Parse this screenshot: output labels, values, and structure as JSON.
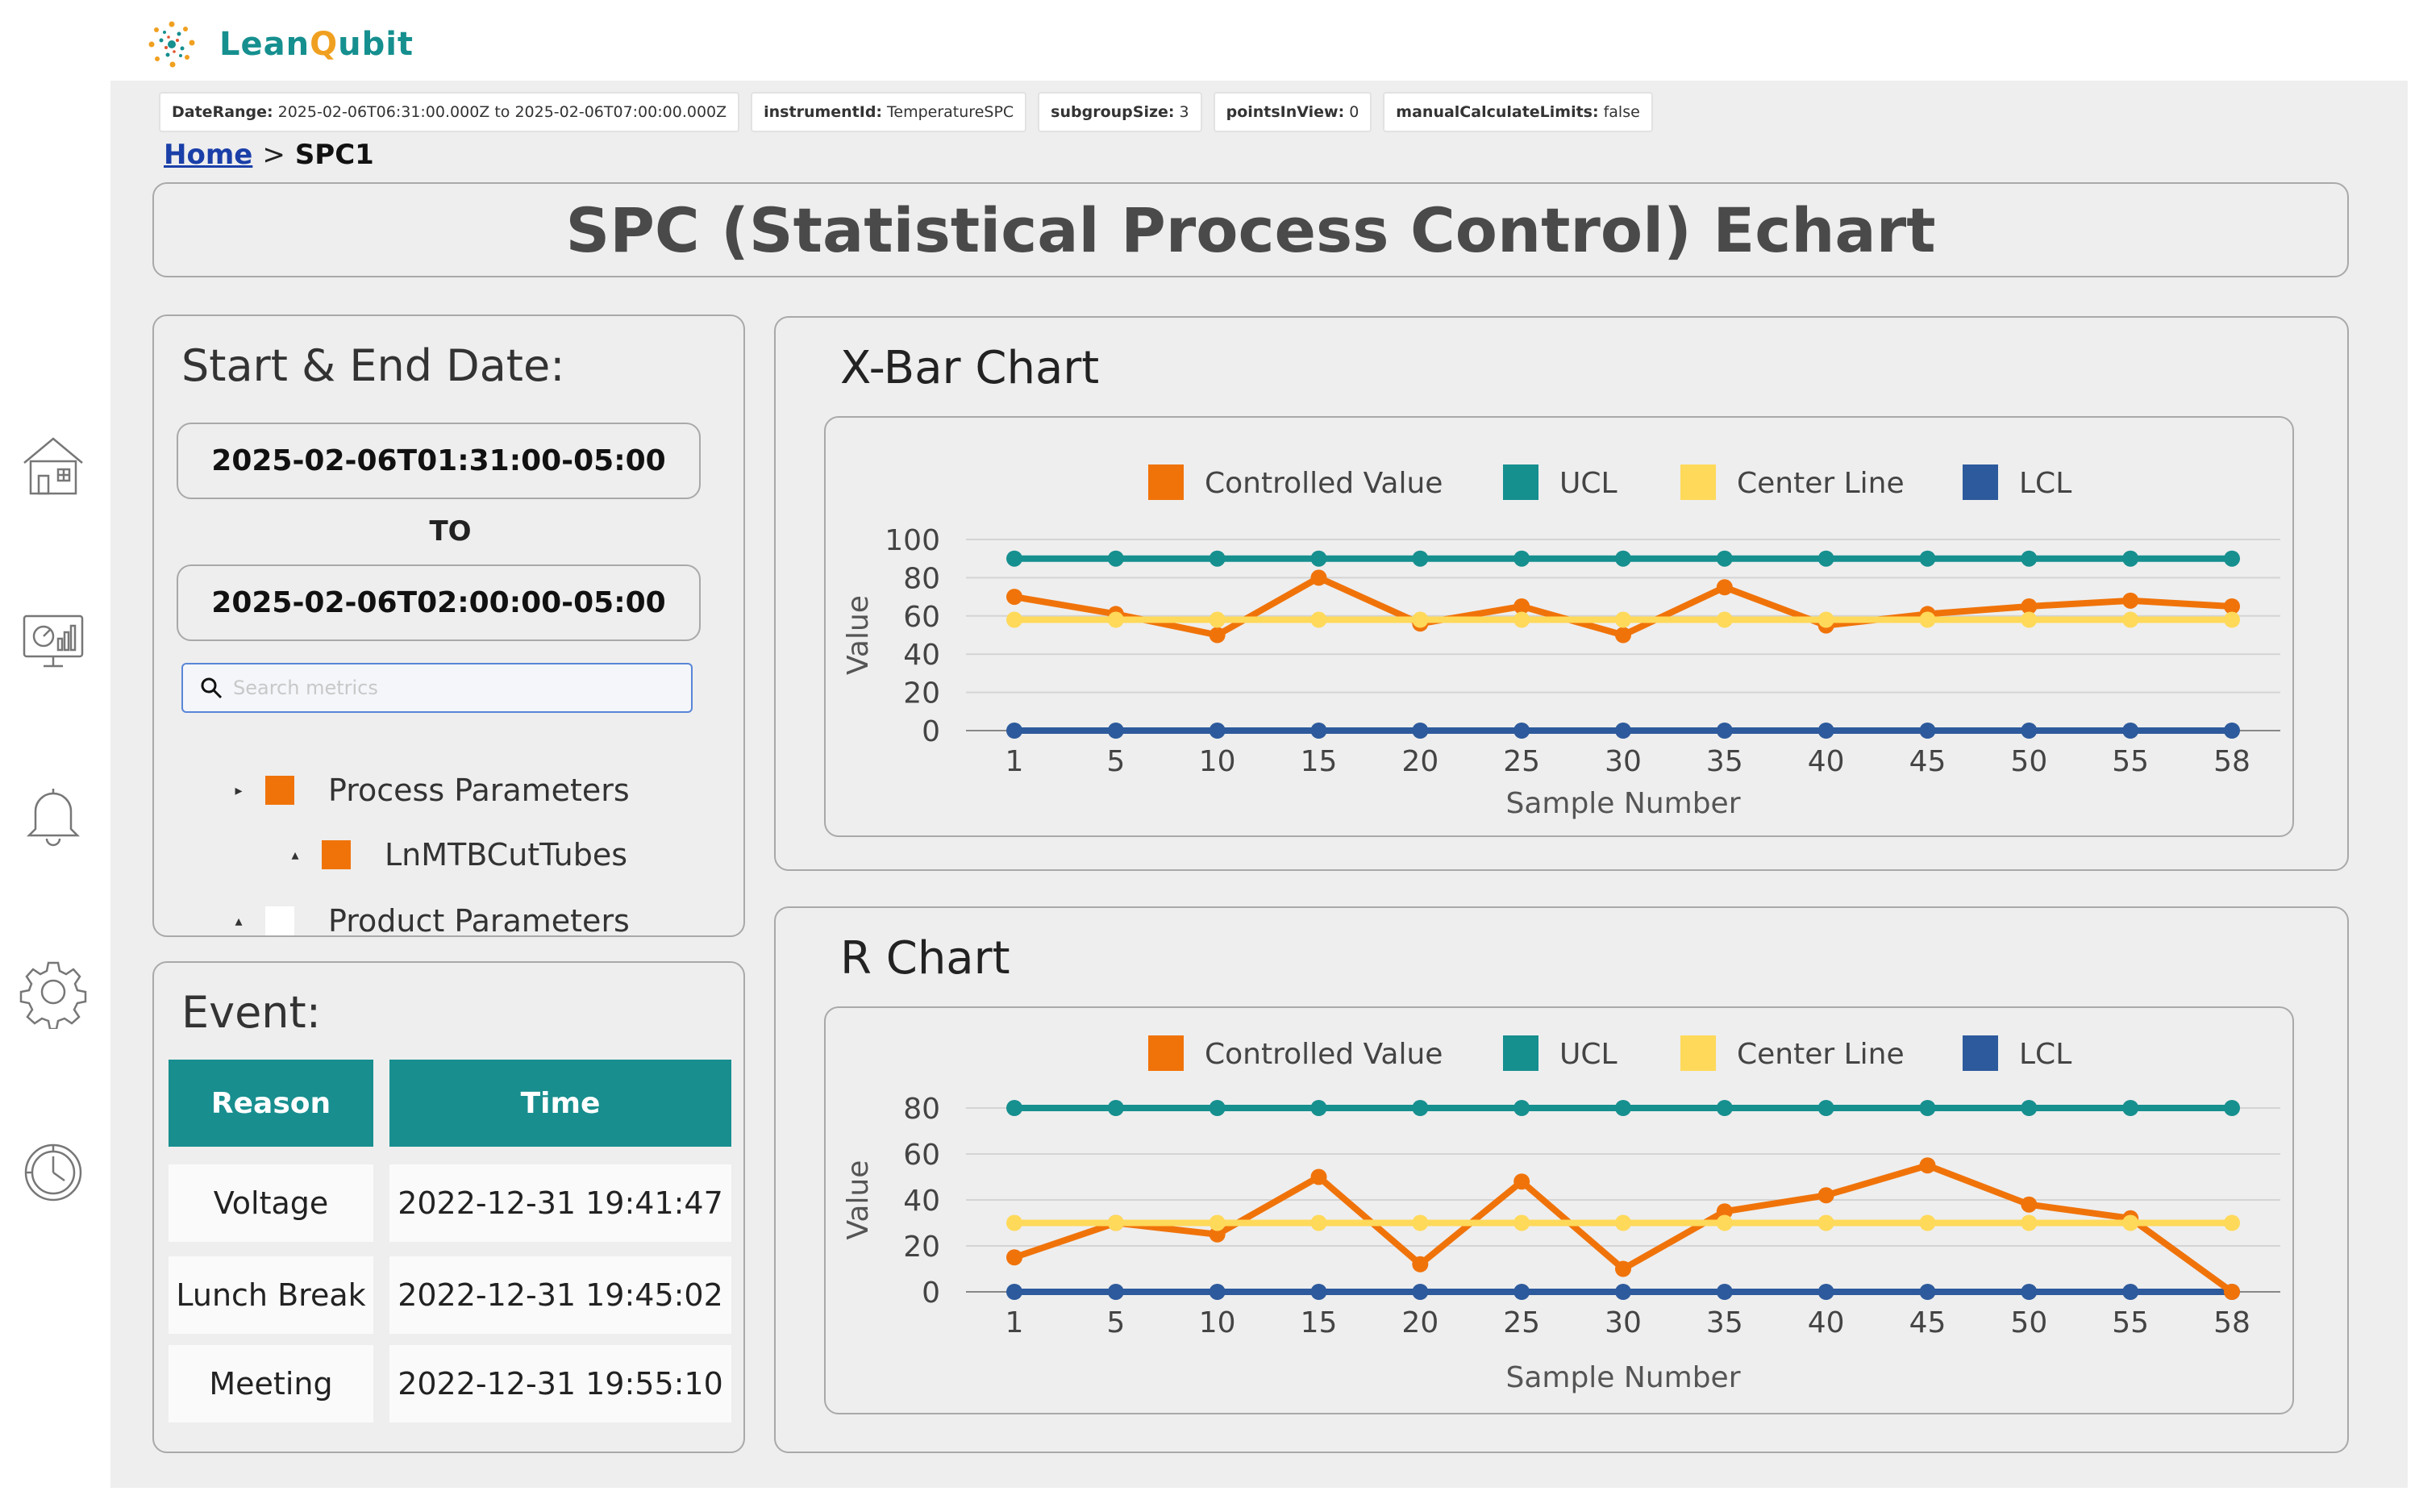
{
  "brand": {
    "name_part1": "Lean",
    "name_part2": "Q",
    "name_part3": "ubit"
  },
  "params": [
    {
      "key": "DateRange:",
      "value": "2025-02-06T06:31:00.000Z to 2025-02-06T07:00:00.000Z"
    },
    {
      "key": "instrumentId:",
      "value": "TemperatureSPC"
    },
    {
      "key": "subgroupSize:",
      "value": "3"
    },
    {
      "key": "pointsInView:",
      "value": "0"
    },
    {
      "key": "manualCalculateLimits:",
      "value": "false"
    }
  ],
  "breadcrumb": {
    "home": "Home",
    "separator": ">",
    "current": "SPC1"
  },
  "page_title": "SPC (Statistical Process Control) Echart",
  "dates": {
    "heading": "Start & End Date:",
    "start": "2025-02-06T01:31:00-05:00",
    "to": "TO",
    "end": "2025-02-06T02:00:00-05:00"
  },
  "search": {
    "placeholder": "Search metrics"
  },
  "tree": [
    {
      "label": "Process Parameters",
      "caret": "▸",
      "color": "#f0730a"
    },
    {
      "label": "LnMTBCutTubes",
      "caret": "▴",
      "color": "#f0730a"
    },
    {
      "label": "Product Parameters",
      "caret": "▴",
      "color": "#ffffff"
    }
  ],
  "event": {
    "heading": "Event:",
    "headers": {
      "reason": "Reason",
      "time": "Time"
    },
    "rows": [
      {
        "reason": "Voltage",
        "time": "2022-12-31 19:41:47"
      },
      {
        "reason": "Lunch Break",
        "time": "2022-12-31 19:45:02"
      },
      {
        "reason": "Meeting",
        "time": "2022-12-31 19:55:10"
      }
    ]
  },
  "colors": {
    "controlled": "#f0730a",
    "ucl": "#168f8f",
    "center": "#ffd95a",
    "lcl": "#2d5a9c",
    "accent": "#188e8f"
  },
  "chart_data": [
    {
      "type": "line",
      "title": "X-Bar Chart",
      "xlabel": "Sample Number",
      "ylabel": "Value",
      "categories": [
        "1",
        "5",
        "10",
        "15",
        "20",
        "25",
        "30",
        "35",
        "40",
        "45",
        "50",
        "55",
        "58"
      ],
      "ylim": [
        0,
        100
      ],
      "yticks": [
        "0",
        "20",
        "40",
        "60",
        "80",
        "100"
      ],
      "legend": [
        "Controlled Value",
        "UCL",
        "Center Line",
        "LCL"
      ],
      "series": [
        {
          "name": "Controlled Value",
          "values": [
            70,
            61,
            50,
            80,
            56,
            65,
            50,
            75,
            55,
            61,
            65,
            68,
            65
          ]
        },
        {
          "name": "UCL",
          "values": [
            90,
            90,
            90,
            90,
            90,
            90,
            90,
            90,
            90,
            90,
            90,
            90,
            90
          ]
        },
        {
          "name": "Center Line",
          "values": [
            58,
            58,
            58,
            58,
            58,
            58,
            58,
            58,
            58,
            58,
            58,
            58,
            58
          ]
        },
        {
          "name": "LCL",
          "values": [
            0,
            0,
            0,
            0,
            0,
            0,
            0,
            0,
            0,
            0,
            0,
            0,
            0
          ]
        }
      ]
    },
    {
      "type": "line",
      "title": "R Chart",
      "xlabel": "Sample Number",
      "ylabel": "Value",
      "categories": [
        "1",
        "5",
        "10",
        "15",
        "20",
        "25",
        "30",
        "35",
        "40",
        "45",
        "50",
        "55",
        "58"
      ],
      "ylim": [
        0,
        80
      ],
      "yticks": [
        "0",
        "20",
        "40",
        "60",
        "80"
      ],
      "legend": [
        "Controlled Value",
        "UCL",
        "Center Line",
        "LCL"
      ],
      "series": [
        {
          "name": "Controlled Value",
          "values": [
            15,
            30,
            25,
            50,
            12,
            48,
            10,
            35,
            42,
            55,
            38,
            32,
            0
          ]
        },
        {
          "name": "UCL",
          "values": [
            80,
            80,
            80,
            80,
            80,
            80,
            80,
            80,
            80,
            80,
            80,
            80,
            80
          ]
        },
        {
          "name": "Center Line",
          "values": [
            30,
            30,
            30,
            30,
            30,
            30,
            30,
            30,
            30,
            30,
            30,
            30,
            30
          ]
        },
        {
          "name": "LCL",
          "values": [
            0,
            0,
            0,
            0,
            0,
            0,
            0,
            0,
            0,
            0,
            0,
            0,
            0
          ]
        }
      ]
    }
  ]
}
